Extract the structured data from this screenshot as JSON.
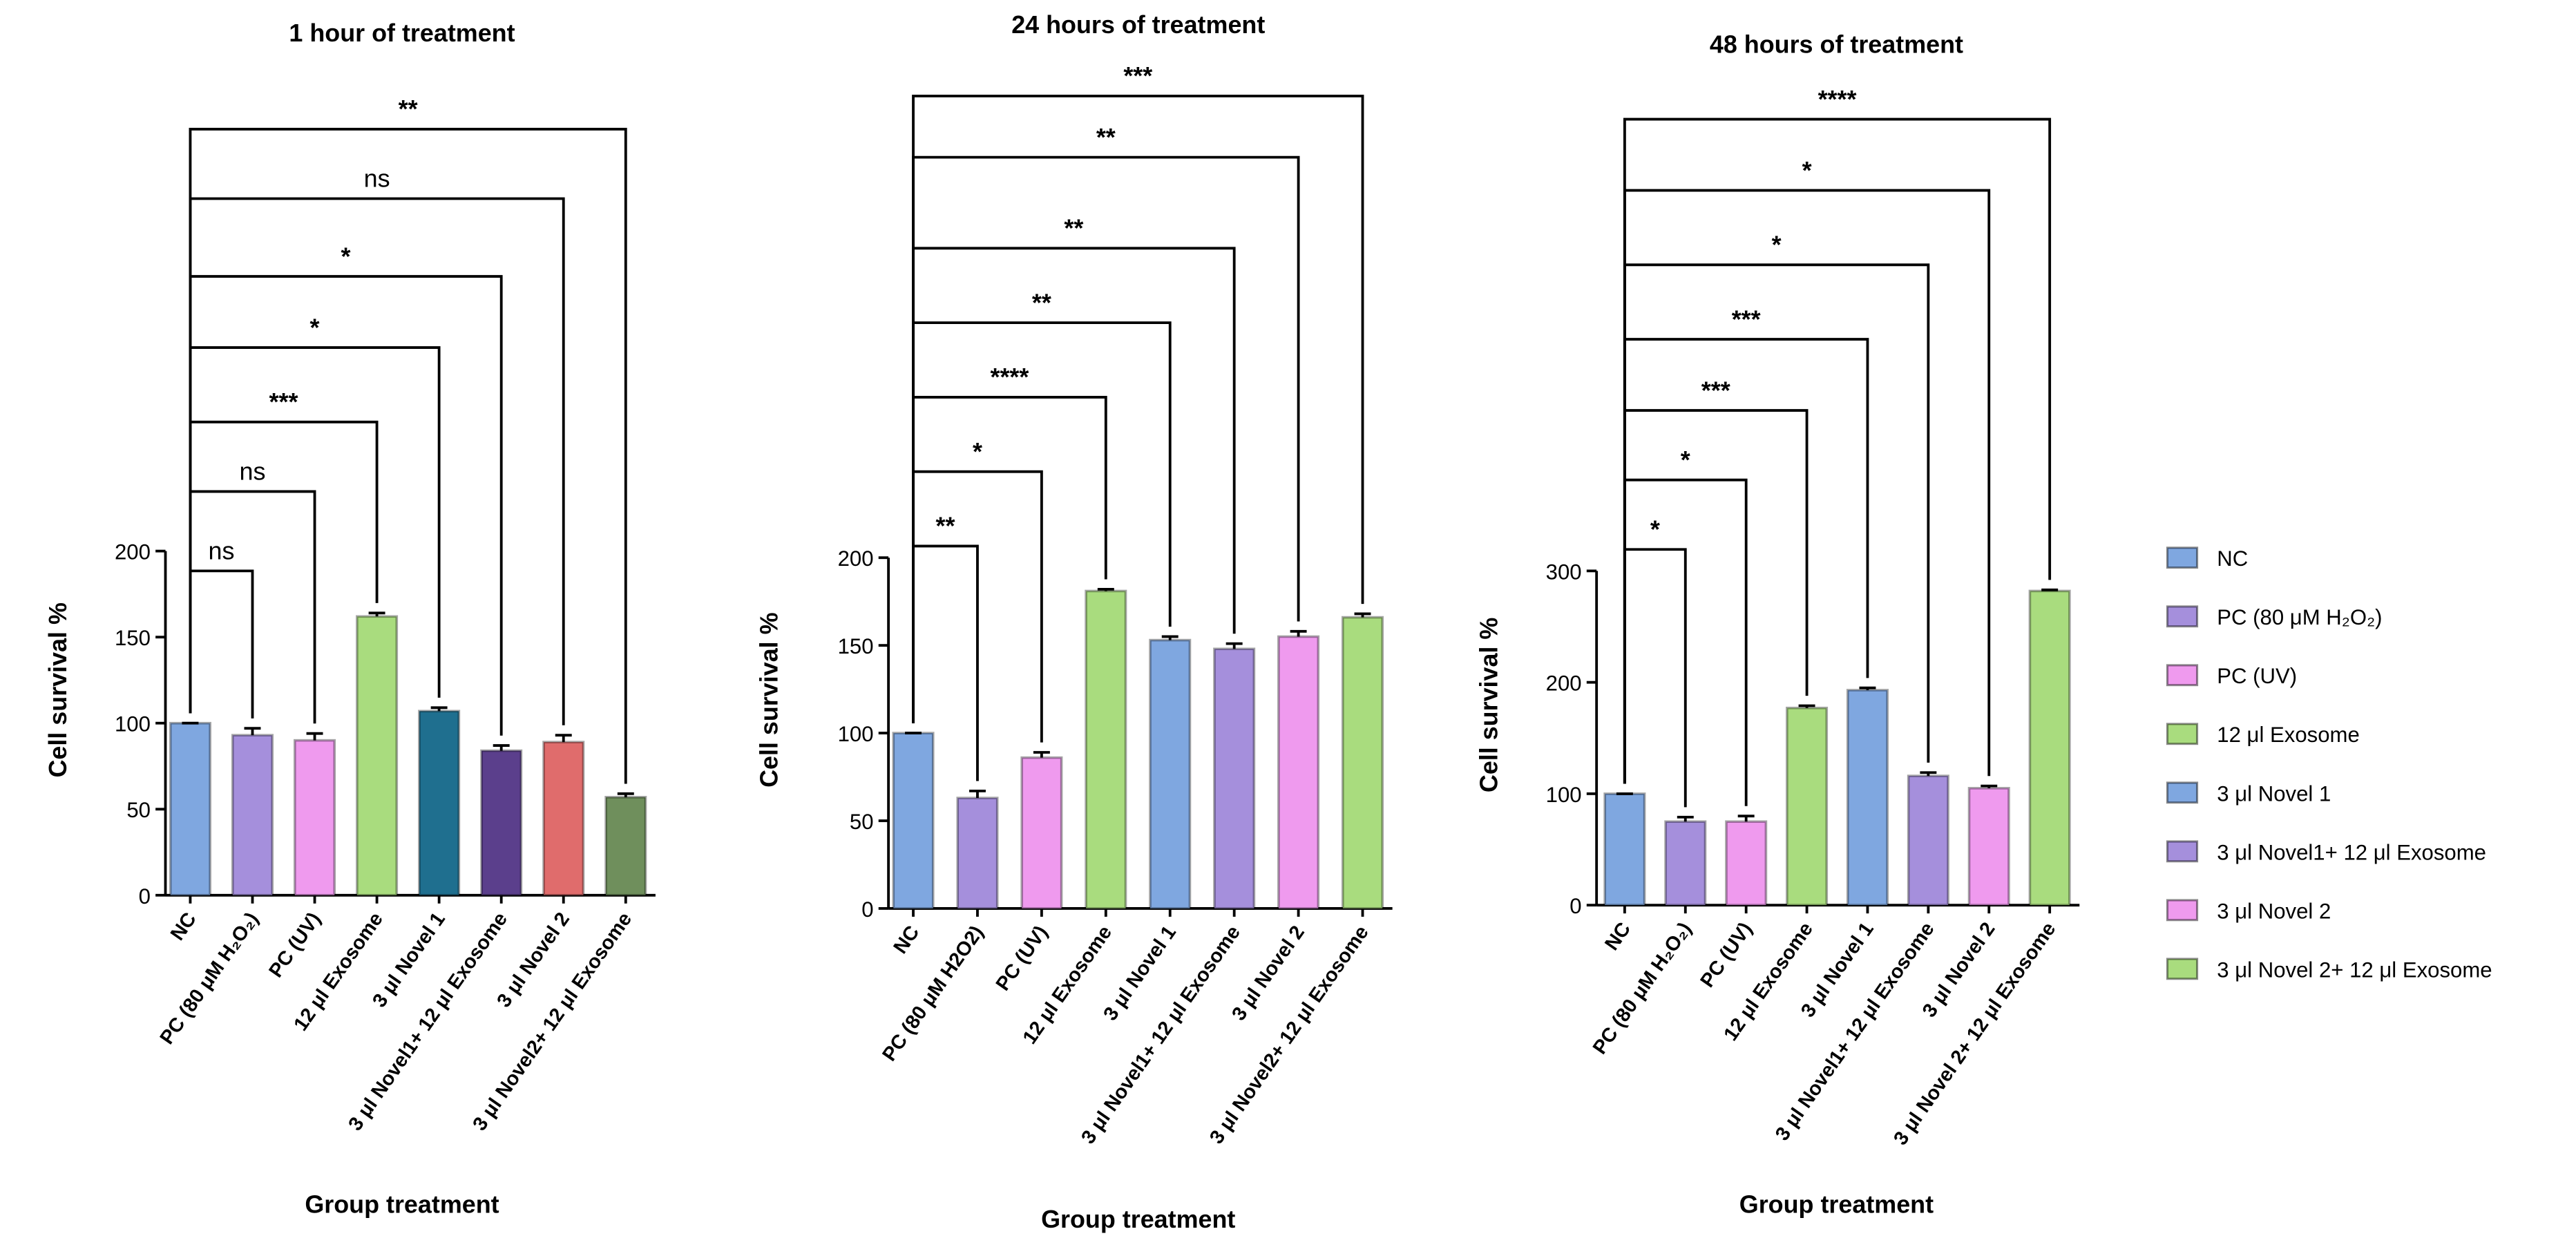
{
  "chart_data": [
    {
      "type": "bar",
      "title": "1 hour of treatment",
      "x_label": "Group treatment",
      "y_label": "Cell survival %",
      "categories": [
        "NC",
        "PC (80 μM H₂O₂)",
        "PC (UV)",
        "12 μl Exosome",
        "3 μl Novel 1",
        "3 μl Novel1+ 12 μl Exosome",
        "3 μl Novel 2",
        "3 μl Novel2+ 12 μl Exosome"
      ],
      "values": [
        100,
        93,
        90,
        162,
        107,
        84,
        89,
        57
      ],
      "errors": [
        0,
        4,
        4,
        2,
        2,
        3,
        4,
        2
      ],
      "colors": [
        "#7fa7e0",
        "#a58fdc",
        "#ef9aee",
        "#a9dc7e",
        "#1f6f8f",
        "#5b3f8c",
        "#e06c6c",
        "#6f8f5c"
      ],
      "ylim": [
        0,
        200
      ],
      "yticks": [
        0,
        50,
        100,
        150,
        200
      ],
      "annotations": [
        "ns",
        "ns",
        "***",
        "*",
        "*",
        "ns",
        "**"
      ]
    },
    {
      "type": "bar",
      "title": "24 hours of treatment",
      "x_label": "Group treatment",
      "y_label": "Cell survival %",
      "categories": [
        "NC",
        "PC (80 μM H2O2)",
        "PC (UV)",
        "12 μl Exosome",
        "3 μl Novel 1",
        "3 μl Novel1+ 12 μl Exosome",
        "3 μl Novel 2",
        "3 μl Novel2+ 12 μl Exosome"
      ],
      "values": [
        100,
        63,
        86,
        181,
        153,
        148,
        155,
        166
      ],
      "errors": [
        0,
        4,
        3,
        1,
        2,
        3,
        3,
        2
      ],
      "colors": [
        "#7fa7e0",
        "#a58fdc",
        "#ef9aee",
        "#a9dc7e",
        "#7fa7e0",
        "#a58fdc",
        "#ef9aee",
        "#a9dc7e"
      ],
      "ylim": [
        0,
        200
      ],
      "yticks": [
        0,
        50,
        100,
        150,
        200
      ],
      "annotations": [
        "**",
        "*",
        "****",
        "**",
        "**",
        "**",
        "***"
      ]
    },
    {
      "type": "bar",
      "title": "48 hours of treatment",
      "x_label": "Group treatment",
      "y_label": "Cell survival %",
      "categories": [
        "NC",
        "PC (80 μM H₂O₂)",
        "PC (UV)",
        "12 μl Exosome",
        "3 μl Novel 1",
        "3 μl Novel1+ 12 μl Exosome",
        "3 μl Novel 2",
        "3 μl Novel 2+ 12 μl Exosome"
      ],
      "values": [
        100,
        75,
        75,
        177,
        193,
        116,
        105,
        282
      ],
      "errors": [
        0,
        4,
        5,
        2,
        2,
        3,
        2,
        1
      ],
      "colors": [
        "#7fa7e0",
        "#a58fdc",
        "#ef9aee",
        "#a9dc7e",
        "#7fa7e0",
        "#a58fdc",
        "#ef9aee",
        "#a9dc7e"
      ],
      "ylim": [
        0,
        300
      ],
      "yticks": [
        0,
        100,
        200,
        300
      ],
      "annotations": [
        "*",
        "*",
        "***",
        "***",
        "*",
        "*",
        "****"
      ],
      "legend": [
        {
          "name": "NC",
          "color": "#7fa7e0"
        },
        {
          "name": "PC (80 μM H₂O₂)",
          "color": "#a58fdc"
        },
        {
          "name": "PC (UV)",
          "color": "#ef9aee"
        },
        {
          "name": "12 μl Exosome",
          "color": "#a9dc7e"
        },
        {
          "name": "3 μl Novel 1",
          "color": "#7fa7e0"
        },
        {
          "name": "3 μl Novel1+ 12 μl Exosome",
          "color": "#a58fdc"
        },
        {
          "name": "3 μl Novel 2",
          "color": "#ef9aee"
        },
        {
          "name": "3 μl Novel 2+ 12 μl Exosome",
          "color": "#a9dc7e"
        }
      ]
    }
  ]
}
